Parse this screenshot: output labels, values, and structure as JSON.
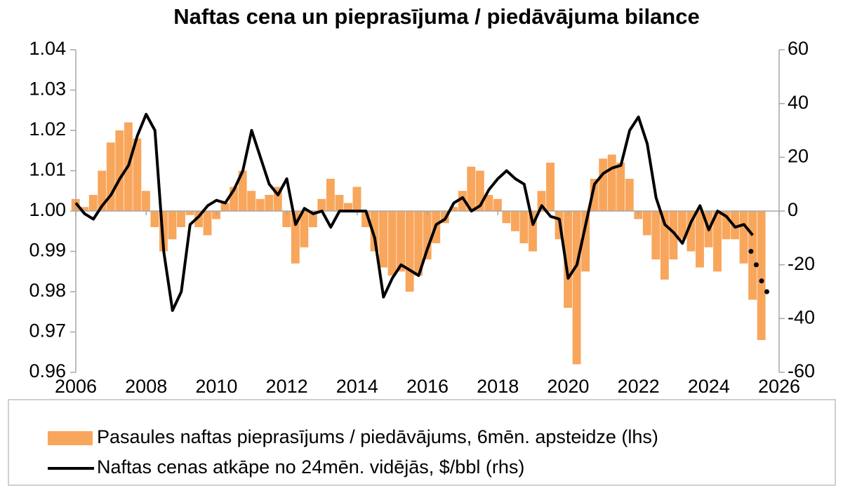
{
  "chart_data": {
    "type": "bar_line",
    "title": "Naftas cena un pieprasījuma / piedāvājuma bilance",
    "x": [
      2006.0,
      2006.25,
      2006.5,
      2006.75,
      2007.0,
      2007.25,
      2007.5,
      2007.75,
      2008.0,
      2008.25,
      2008.5,
      2008.75,
      2009.0,
      2009.25,
      2009.5,
      2009.75,
      2010.0,
      2010.25,
      2010.5,
      2010.75,
      2011.0,
      2011.25,
      2011.5,
      2011.75,
      2012.0,
      2012.25,
      2012.5,
      2012.75,
      2013.0,
      2013.25,
      2013.5,
      2013.75,
      2014.0,
      2014.25,
      2014.5,
      2014.75,
      2015.0,
      2015.25,
      2015.5,
      2015.75,
      2016.0,
      2016.25,
      2016.5,
      2016.75,
      2017.0,
      2017.25,
      2017.5,
      2017.75,
      2018.0,
      2018.25,
      2018.5,
      2018.75,
      2019.0,
      2019.25,
      2019.5,
      2019.75,
      2020.0,
      2020.25,
      2020.5,
      2020.75,
      2021.0,
      2021.25,
      2021.5,
      2021.75,
      2022.0,
      2022.25,
      2022.5,
      2022.75,
      2023.0,
      2023.25,
      2023.5,
      2023.75,
      2024.0,
      2024.25,
      2024.5,
      2024.75,
      2025.0,
      2025.25,
      2025.5
    ],
    "series": [
      {
        "name": "Pasaules naftas pieprasījums / piedāvājums, 6mēn. apsteidze (lhs)",
        "kind": "bar",
        "axis": "y",
        "color": "#f8a65c",
        "values": [
          1.003,
          1.001,
          1.004,
          1.01,
          1.017,
          1.02,
          1.022,
          1.018,
          1.005,
          0.996,
          0.99,
          0.993,
          0.996,
          0.999,
          0.996,
          0.994,
          0.998,
          1.002,
          1.006,
          1.01,
          1.005,
          1.003,
          1.004,
          1.006,
          0.996,
          0.987,
          0.991,
          0.996,
          1.003,
          1.008,
          1.004,
          1.002,
          1.006,
          0.996,
          0.99,
          0.986,
          0.984,
          0.985,
          0.98,
          0.984,
          0.988,
          0.992,
          0.997,
          1.001,
          1.005,
          1.011,
          1.01,
          1.004,
          1.003,
          0.997,
          0.995,
          0.992,
          0.99,
          1.005,
          1.012,
          0.993,
          0.976,
          0.962,
          0.985,
          1.008,
          1.013,
          1.014,
          1.012,
          1.008,
          0.998,
          0.994,
          0.988,
          0.983,
          0.988,
          0.993,
          0.99,
          0.986,
          0.991,
          0.985,
          0.993,
          0.993,
          0.987,
          0.978,
          0.968
        ]
      },
      {
        "name": "Naftas cenas atkāpe no 24mēn. vidējās, $/bbl (rhs)",
        "kind": "line",
        "axis": "y2",
        "color": "#000000",
        "values": [
          3,
          -1,
          -3,
          2,
          6,
          12,
          17,
          28,
          36,
          30,
          -15,
          -37,
          -30,
          -5,
          -2,
          2,
          4,
          3,
          8,
          15,
          30,
          20,
          10,
          6,
          12,
          -5,
          1,
          -1,
          0,
          -6,
          0,
          0,
          0,
          0,
          -10,
          -32,
          -25,
          -20,
          -22,
          -24,
          -14,
          -5,
          -3,
          3,
          5,
          0,
          2,
          8,
          12,
          15,
          12,
          10,
          -5,
          2,
          -2,
          -3,
          -25,
          -20,
          -5,
          10,
          14,
          16,
          17,
          30,
          35,
          25,
          5,
          -5,
          -8,
          -12,
          -4,
          2,
          -7,
          0,
          -2,
          -6,
          -5,
          -9,
          null
        ],
        "forecast": {
          "x": [
            2025.2,
            2025.35,
            2025.5,
            2025.65
          ],
          "values": [
            -15,
            -20,
            -26,
            -30
          ]
        }
      }
    ],
    "xlim": [
      2006,
      2026
    ],
    "xticks": [
      2006,
      2008,
      2010,
      2012,
      2014,
      2016,
      2018,
      2020,
      2022,
      2024,
      2026
    ],
    "ylim": [
      0.96,
      1.04
    ],
    "yticks": [
      {
        "value": 1.04,
        "label": "1.04"
      },
      {
        "value": 1.03,
        "label": "1.03"
      },
      {
        "value": 1.02,
        "label": "1.02"
      },
      {
        "value": 1.01,
        "label": "1.01"
      },
      {
        "value": 1.0,
        "label": "1.00"
      },
      {
        "value": 0.99,
        "label": "0.99"
      },
      {
        "value": 0.98,
        "label": "0.98"
      },
      {
        "value": 0.97,
        "label": "0.97"
      },
      {
        "value": 0.96,
        "label": "0.96"
      }
    ],
    "y2lim": [
      -60,
      60
    ],
    "y2ticks": [
      60,
      40,
      20,
      0,
      -20,
      -40,
      -60
    ],
    "baseline": 1.0
  }
}
